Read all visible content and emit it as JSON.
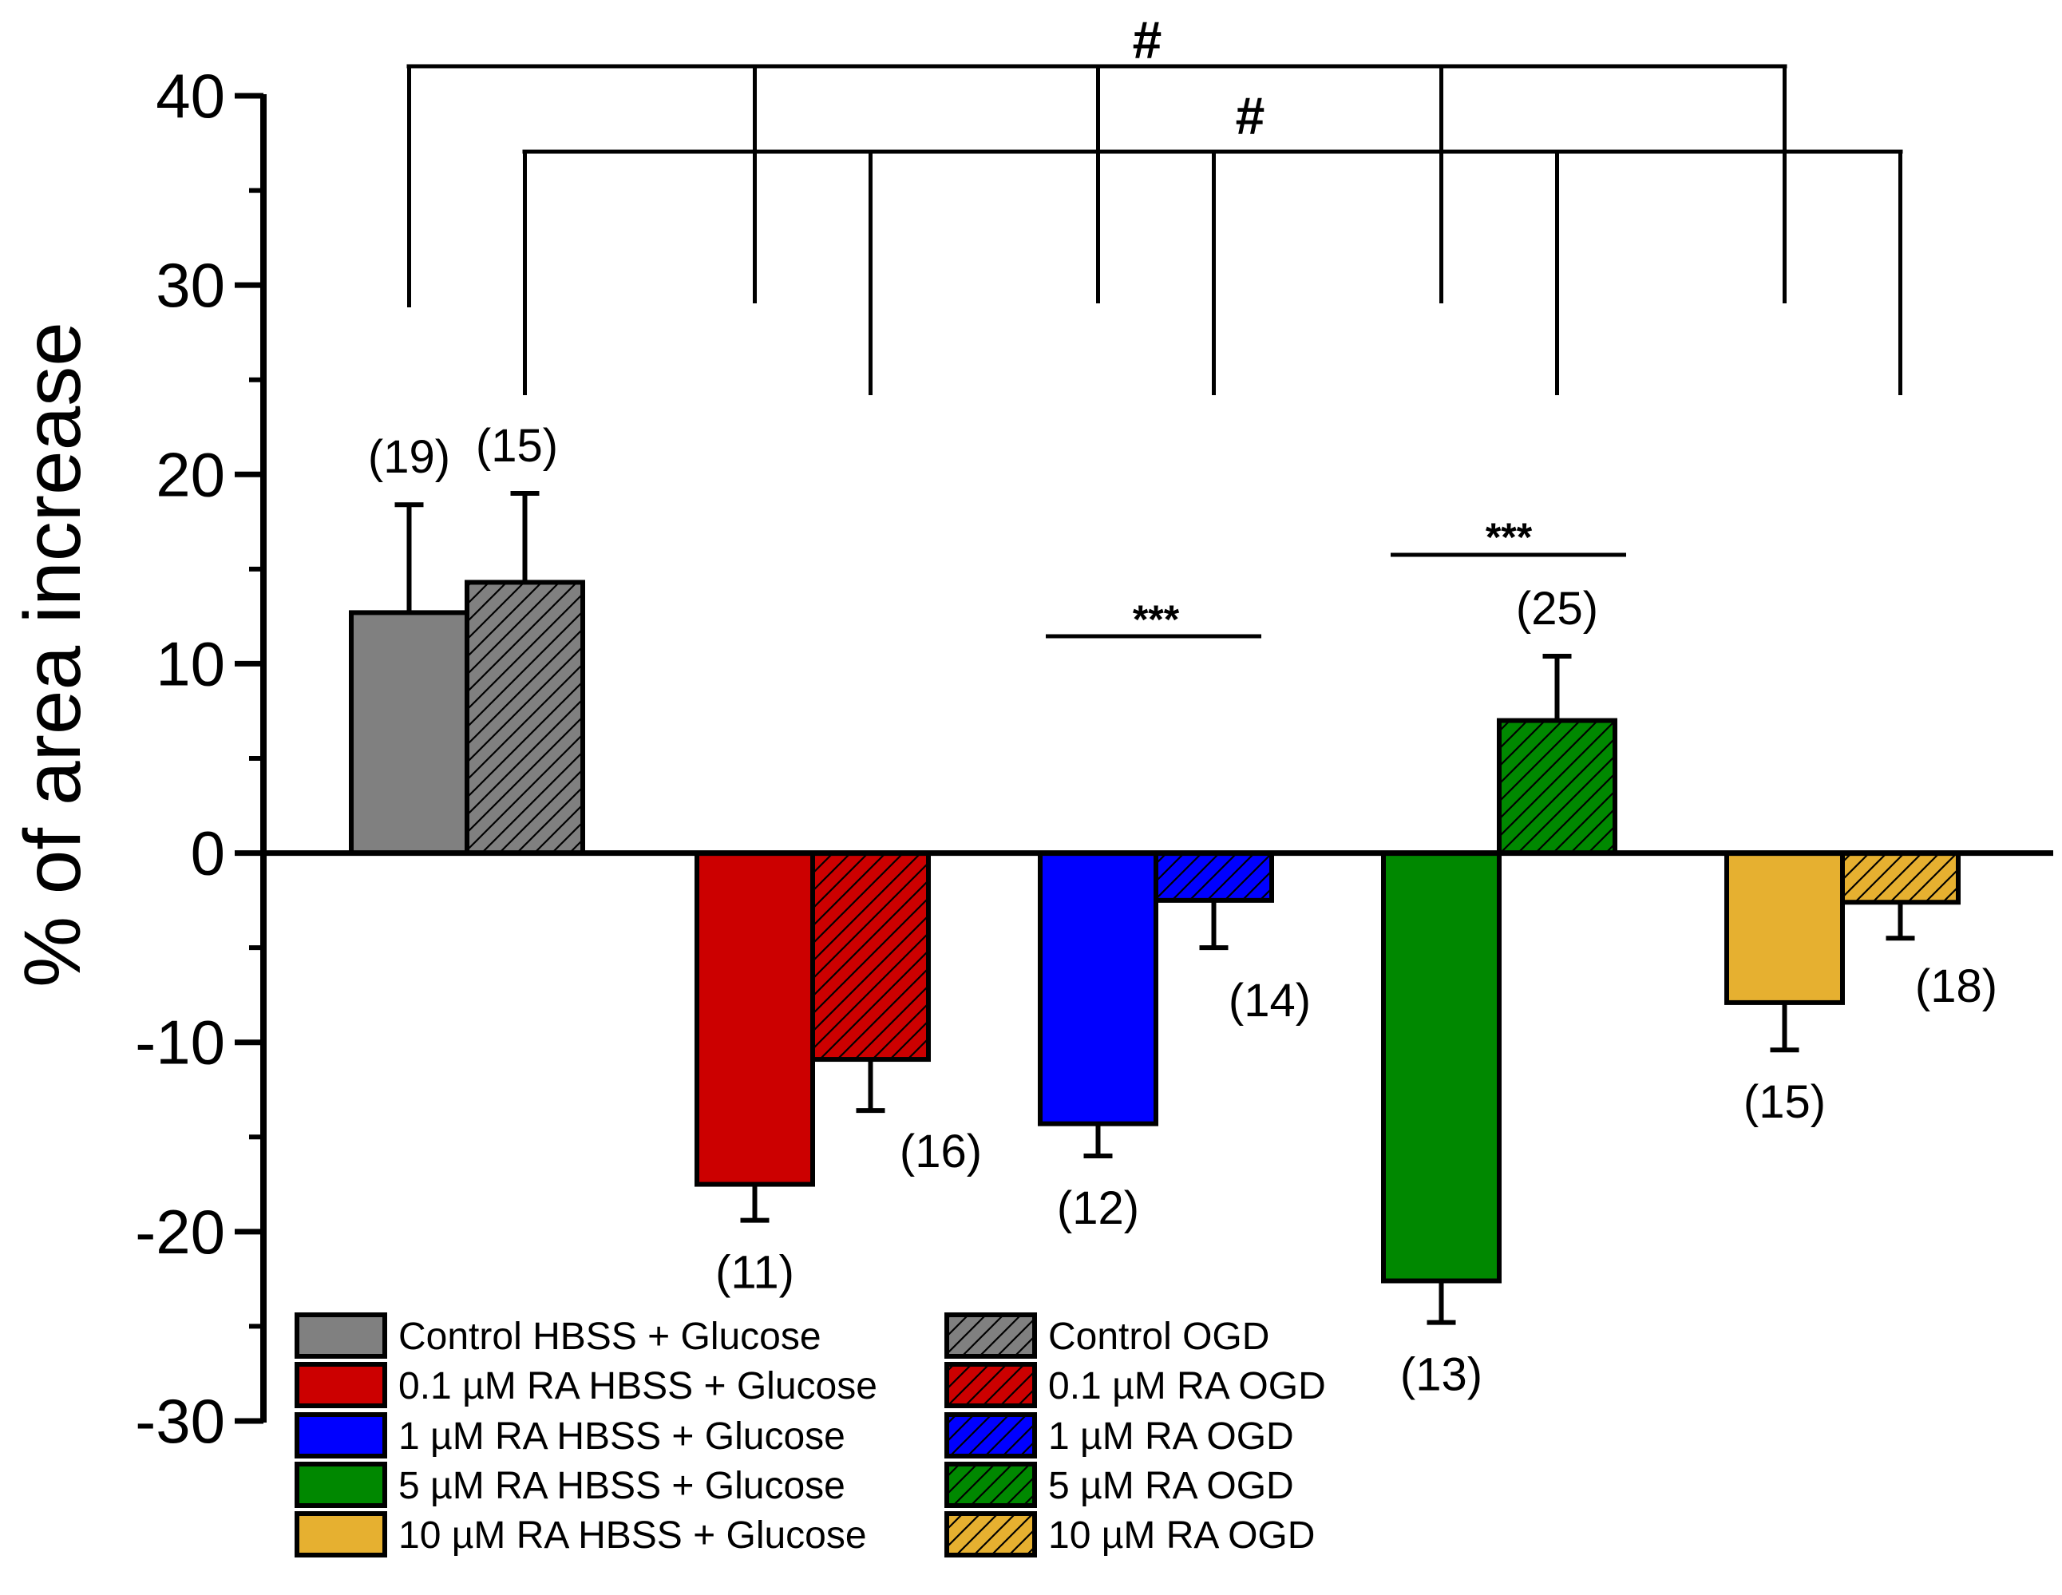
{
  "chart_data": {
    "type": "bar",
    "title": "",
    "xlabel": "",
    "ylabel": "% of area increase",
    "ylim": [
      -30,
      40
    ],
    "yticks": [
      40,
      30,
      20,
      10,
      0,
      -10,
      -20,
      -30
    ],
    "grid": false,
    "legend_position": "bottom-left",
    "groups": [
      "Control",
      "0.1 µM RA",
      "1 µM RA",
      "5 µM RA",
      "10 µM RA"
    ],
    "series": [
      {
        "name": "HBSS + Glucose",
        "hatched": false,
        "values": [
          12.7,
          -17.5,
          -14.3,
          -22.6,
          -7.9
        ],
        "errors": [
          5.7,
          1.9,
          1.7,
          2.2,
          2.5
        ],
        "n_labels": [
          "(19)",
          "(11)",
          "(12)",
          "(13)",
          "(15)"
        ]
      },
      {
        "name": "OGD",
        "hatched": true,
        "values": [
          14.3,
          -10.9,
          -2.5,
          7.0,
          -2.6
        ],
        "errors": [
          4.7,
          2.7,
          2.5,
          3.4,
          1.9
        ],
        "n_labels": [
          "(15)",
          "(16)",
          "(14)",
          "(25)",
          "(18)"
        ]
      }
    ],
    "group_colors": [
      "#808080",
      "#cc0000",
      "#0000ff",
      "#008800",
      "#e6b030"
    ],
    "legend": [
      "Control HBSS + Glucose",
      "0.1 µM RA HBSS + Glucose",
      "1 µM RA HBSS + Glucose",
      "5 µM RA HBSS + Glucose",
      "10 µM RA HBSS + Glucose",
      "Control OGD",
      "0.1 µM RA OGD",
      "1 µM RA OGD",
      "5 µM RA OGD",
      "10 µM RA OGD"
    ],
    "annotations": {
      "hash_symbol": "#",
      "triple_star": "***"
    }
  }
}
